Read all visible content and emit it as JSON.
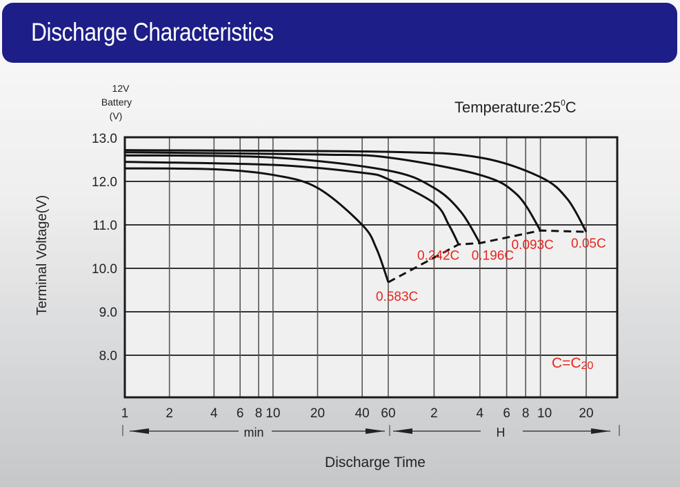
{
  "header": {
    "title": "Discharge Characteristics"
  },
  "chart_data": {
    "type": "line",
    "title": "Discharge Characteristics",
    "annotation_temperature": "Temperature:25",
    "annotation_temperature_sup": "0",
    "annotation_temperature_unit": "C",
    "annotation_capacity": "C=C",
    "annotation_capacity_sub": "20",
    "y_unit_label": [
      "12V",
      "Battery",
      "(V)"
    ],
    "ylabel": "Terminal Voltage(V)",
    "xlabel": "Discharge Time",
    "x_scale": "log",
    "x_unit_minutes": "min",
    "x_unit_hours": "H",
    "ylim": [
      7.0,
      13.0
    ],
    "yticks": [
      13.0,
      12.0,
      11.0,
      10.0,
      9.0,
      8.0
    ],
    "ytick_labels": [
      "13.0",
      "12.0",
      "11.0",
      "10.0",
      "9.0",
      "8.0"
    ],
    "xticks_min": [
      1,
      2,
      4,
      6,
      8,
      10,
      20,
      40,
      60
    ],
    "xtick_labels_min": [
      "1",
      "2",
      "4",
      "6",
      "8",
      "10",
      "20",
      "40",
      "60"
    ],
    "xticks_hours": [
      2,
      4,
      6,
      8,
      10,
      20
    ],
    "xtick_labels_hours": [
      "2",
      "4",
      "6",
      "8",
      "10",
      "20"
    ],
    "grid": true,
    "series": [
      {
        "name": "0.583C",
        "points_min_v": [
          [
            1,
            12.3
          ],
          [
            4,
            12.28
          ],
          [
            10,
            12.15
          ],
          [
            20,
            11.85
          ],
          [
            40,
            11.0
          ],
          [
            50,
            10.45
          ],
          [
            60,
            9.68
          ]
        ]
      },
      {
        "name": "0.242C",
        "points_min_v": [
          [
            1,
            12.45
          ],
          [
            10,
            12.38
          ],
          [
            40,
            12.2
          ],
          [
            60,
            12.05
          ],
          [
            120,
            11.5
          ],
          [
            150,
            11.0
          ],
          [
            174,
            10.55
          ]
        ]
      },
      {
        "name": "0.196C",
        "points_min_v": [
          [
            1,
            12.6
          ],
          [
            10,
            12.55
          ],
          [
            60,
            12.25
          ],
          [
            120,
            11.85
          ],
          [
            180,
            11.3
          ],
          [
            240,
            10.58
          ]
        ]
      },
      {
        "name": "0.093C",
        "points_min_v": [
          [
            1,
            12.67
          ],
          [
            20,
            12.62
          ],
          [
            60,
            12.55
          ],
          [
            240,
            12.15
          ],
          [
            420,
            11.7
          ],
          [
            600,
            10.87
          ]
        ]
      },
      {
        "name": "0.05C",
        "points_min_v": [
          [
            1,
            12.72
          ],
          [
            60,
            12.68
          ],
          [
            240,
            12.55
          ],
          [
            600,
            12.1
          ],
          [
            900,
            11.6
          ],
          [
            1200,
            10.84
          ]
        ]
      }
    ],
    "end_voltage_line": {
      "style": "dashed",
      "points_min_v": [
        [
          60,
          9.68
        ],
        [
          174,
          10.55
        ],
        [
          240,
          10.58
        ],
        [
          600,
          10.87
        ],
        [
          1200,
          10.84
        ]
      ]
    },
    "series_labels": [
      "0.583C",
      "0.242C",
      "0.196C",
      "0.093C",
      "0.05C"
    ],
    "label_color": "#e8241c",
    "line_color": "#111111"
  }
}
